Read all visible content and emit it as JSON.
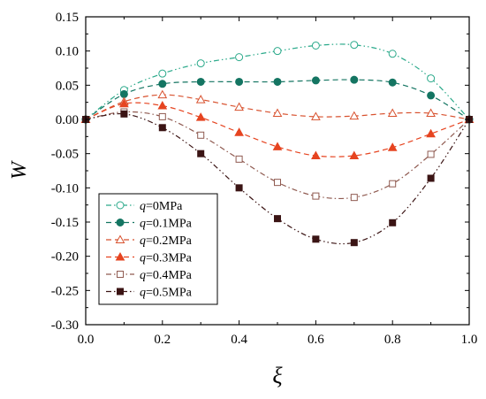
{
  "chart_data": {
    "type": "line",
    "xlabel": "ξ",
    "ylabel": "W",
    "xlim": [
      0.0,
      1.0
    ],
    "ylim": [
      -0.3,
      0.15
    ],
    "xticks": [
      "0.0",
      "0.2",
      "0.4",
      "0.6",
      "0.8",
      "1.0"
    ],
    "yticks": [
      "0.15",
      "0.10",
      "0.05",
      "0.00",
      "-0.05",
      "-0.10",
      "-0.15",
      "-0.20",
      "-0.25",
      "-0.30"
    ],
    "grid": false,
    "legend_position": "bottom-left",
    "x": [
      0.0,
      0.1,
      0.2,
      0.3,
      0.4,
      0.5,
      0.6,
      0.7,
      0.8,
      0.9,
      1.0
    ],
    "series": [
      {
        "name_var": "q",
        "name_value": "=0MPa",
        "color": "#2aa98a",
        "marker": "circle",
        "filled": false,
        "dash": "dashdotdot",
        "values": [
          0.0,
          0.043,
          0.067,
          0.082,
          0.091,
          0.1,
          0.108,
          0.109,
          0.096,
          0.06,
          0.0
        ]
      },
      {
        "name_var": "q",
        "name_value": "=0.1MPa",
        "color": "#147562",
        "marker": "circle",
        "filled": true,
        "dash": "dash",
        "values": [
          0.0,
          0.037,
          0.052,
          0.055,
          0.055,
          0.055,
          0.057,
          0.058,
          0.054,
          0.035,
          0.0
        ]
      },
      {
        "name_var": "q",
        "name_value": "=0.2MPa",
        "color": "#d8522f",
        "marker": "triangle",
        "filled": false,
        "dash": "dash",
        "values": [
          0.0,
          0.026,
          0.036,
          0.029,
          0.018,
          0.009,
          0.004,
          0.005,
          0.009,
          0.009,
          0.0
        ]
      },
      {
        "name_var": "q",
        "name_value": "=0.3MPa",
        "color": "#e64420",
        "marker": "triangle",
        "filled": true,
        "dash": "dash",
        "values": [
          0.0,
          0.023,
          0.02,
          0.003,
          -0.019,
          -0.04,
          -0.053,
          -0.053,
          -0.041,
          -0.021,
          0.0
        ]
      },
      {
        "name_var": "q",
        "name_value": "=0.4MPa",
        "color": "#8f5a50",
        "marker": "square",
        "filled": false,
        "dash": "dashdot",
        "values": [
          0.0,
          0.011,
          0.004,
          -0.023,
          -0.058,
          -0.092,
          -0.112,
          -0.114,
          -0.094,
          -0.051,
          0.0
        ]
      },
      {
        "name_var": "q",
        "name_value": "=0.5MPa",
        "color": "#3b1414",
        "marker": "square",
        "filled": true,
        "dash": "dashdotdot",
        "values": [
          0.0,
          0.008,
          -0.012,
          -0.05,
          -0.1,
          -0.145,
          -0.175,
          -0.18,
          -0.151,
          -0.086,
          0.0
        ]
      }
    ]
  }
}
